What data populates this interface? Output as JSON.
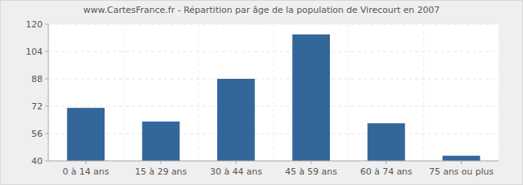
{
  "chart_data": {
    "type": "bar",
    "title": "www.CartesFrance.fr - Répartition par âge de la population de Virecourt en 2007",
    "categories": [
      "0 à 14 ans",
      "15 à 29 ans",
      "30 à 44 ans",
      "45 à 59 ans",
      "60 à 74 ans",
      "75 ans ou plus"
    ],
    "values": [
      71,
      63,
      88,
      114,
      62,
      43
    ],
    "color": "#336699",
    "ylim": [
      40,
      120
    ],
    "yticks": [
      40,
      56,
      72,
      88,
      104,
      120
    ],
    "grid": true
  }
}
